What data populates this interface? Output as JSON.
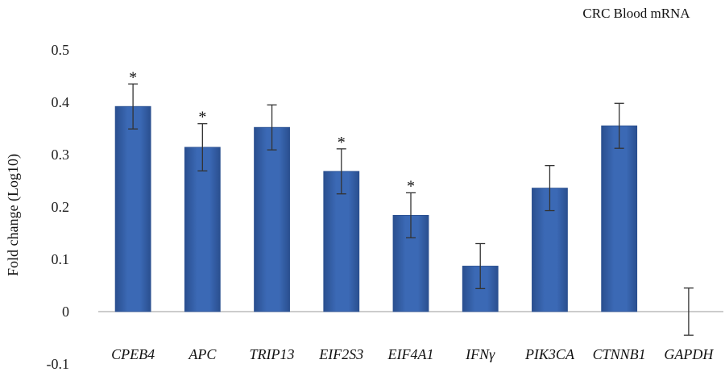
{
  "chart_data": {
    "type": "bar",
    "title": "CRC Blood mRNA",
    "ylabel": "Fold change (Log10)",
    "xlabel": "",
    "ylim": [
      -0.1,
      0.5
    ],
    "yticks": [
      -0.1,
      0,
      0.1,
      0.2,
      0.3,
      0.4,
      0.5
    ],
    "ytick_labels": [
      "-0.1",
      "0",
      "0.1",
      "0.2",
      "0.3",
      "0.4",
      "0.5"
    ],
    "grid": false,
    "categories": [
      "CPEB4",
      "APC",
      "TRIP13",
      "EIF2S3",
      "EIF4A1",
      "IFNγ",
      "PIK3CA",
      "CTNNB1",
      "GAPDH"
    ],
    "values": [
      0.392,
      0.314,
      0.352,
      0.268,
      0.184,
      0.087,
      0.236,
      0.355,
      0.0
    ],
    "error": [
      0.043,
      0.045,
      0.043,
      0.043,
      0.043,
      0.043,
      0.043,
      0.043,
      0.045
    ],
    "significance": [
      "*",
      "*",
      "",
      "*",
      "*",
      "",
      "",
      "",
      ""
    ],
    "bar_color": "#3b69b5",
    "bar_edge_color": "#2a4f8f"
  }
}
